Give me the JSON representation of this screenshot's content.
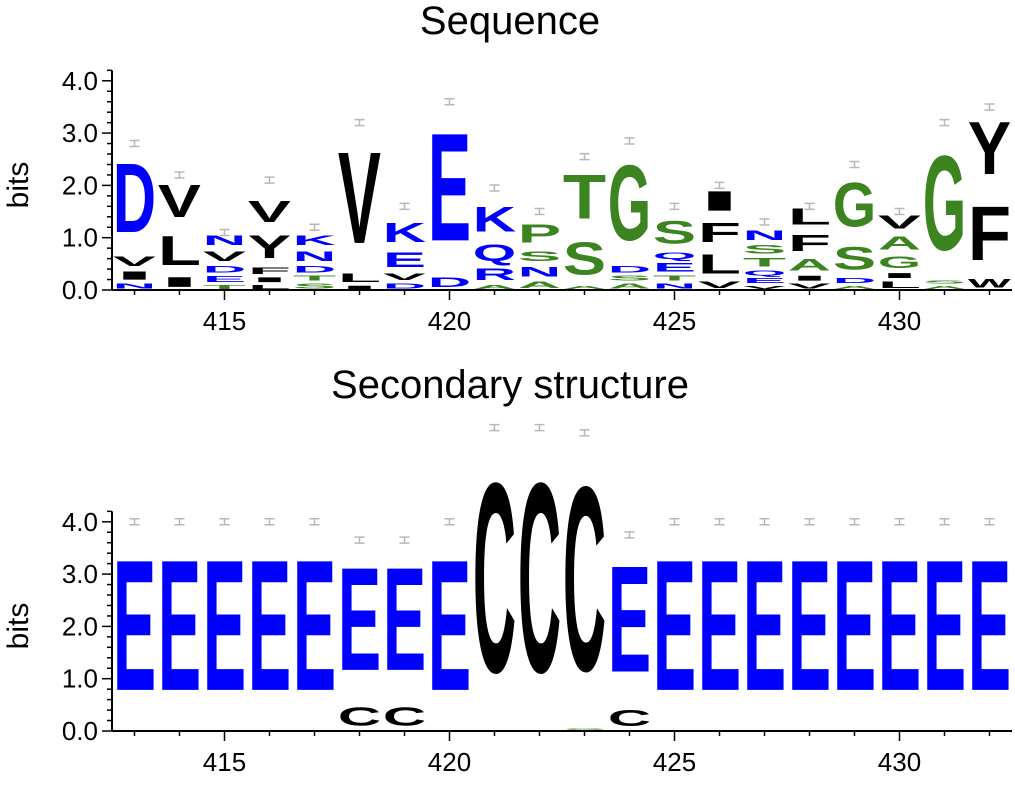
{
  "colors": {
    "polar": "#0000ff",
    "hydrophobic": "#000000",
    "neutral": "#3c8420",
    "errorbar": "#b8b8b8",
    "axis": "#000000",
    "background": "#ffffff"
  },
  "chart_data": [
    {
      "type": "sequence-logo",
      "title": "Sequence",
      "ylabel": "bits",
      "ylim": [
        0,
        4.2
      ],
      "yticks": [
        "0.0",
        "1.0",
        "2.0",
        "3.0",
        "4.0"
      ],
      "xlim": [
        412.5,
        432.5
      ],
      "xticks": [
        "415",
        "420",
        "425",
        "430"
      ],
      "positions": [
        {
          "x": 413,
          "err": 2.8,
          "stack": [
            {
              "l": "N",
              "h": 0.15,
              "c": "polar"
            },
            {
              "l": "I",
              "h": 0.25,
              "c": "hydrophobic"
            },
            {
              "l": "V",
              "h": 0.3,
              "c": "hydrophobic"
            },
            {
              "l": "D",
              "h": 2.1,
              "c": "polar"
            }
          ]
        },
        {
          "x": 414,
          "err": 2.2,
          "stack": [
            {
              "l": "I",
              "h": 0.3,
              "c": "hydrophobic"
            },
            {
              "l": "L",
              "h": 0.9,
              "c": "hydrophobic"
            },
            {
              "l": "V",
              "h": 1.0,
              "c": "hydrophobic"
            }
          ]
        },
        {
          "x": 415,
          "err": 1.1,
          "stack": [
            {
              "l": "T",
              "h": 0.12,
              "c": "neutral"
            },
            {
              "l": "E",
              "h": 0.18,
              "c": "polar"
            },
            {
              "l": "D",
              "h": 0.2,
              "c": "polar"
            },
            {
              "l": "V",
              "h": 0.3,
              "c": "hydrophobic"
            },
            {
              "l": "N",
              "h": 0.3,
              "c": "polar"
            }
          ]
        },
        {
          "x": 416,
          "err": 2.1,
          "stack": [
            {
              "l": "L",
              "h": 0.12,
              "c": "hydrophobic"
            },
            {
              "l": "I",
              "h": 0.15,
              "c": "hydrophobic"
            },
            {
              "l": "F",
              "h": 0.2,
              "c": "hydrophobic"
            },
            {
              "l": "Y",
              "h": 0.7,
              "c": "hydrophobic"
            },
            {
              "l": "V",
              "h": 0.65,
              "c": "hydrophobic"
            }
          ]
        },
        {
          "x": 417,
          "err": 1.2,
          "stack": [
            {
              "l": "S",
              "h": 0.15,
              "c": "neutral"
            },
            {
              "l": "T",
              "h": 0.15,
              "c": "neutral"
            },
            {
              "l": "D",
              "h": 0.2,
              "c": "polar"
            },
            {
              "l": "N",
              "h": 0.3,
              "c": "polar"
            },
            {
              "l": "K",
              "h": 0.3,
              "c": "polar"
            }
          ]
        },
        {
          "x": 418,
          "err": 3.2,
          "stack": [
            {
              "l": "I",
              "h": 0.1,
              "c": "hydrophobic"
            },
            {
              "l": "L",
              "h": 0.25,
              "c": "hydrophobic"
            },
            {
              "l": "V",
              "h": 2.8,
              "c": "hydrophobic"
            }
          ]
        },
        {
          "x": 419,
          "err": 1.6,
          "stack": [
            {
              "l": "D",
              "h": 0.15,
              "c": "polar"
            },
            {
              "l": "V",
              "h": 0.2,
              "c": "hydrophobic"
            },
            {
              "l": "E",
              "h": 0.45,
              "c": "polar"
            },
            {
              "l": "K",
              "h": 0.6,
              "c": "polar"
            }
          ]
        },
        {
          "x": 420,
          "err": 3.6,
          "stack": [
            {
              "l": "D",
              "h": 0.3,
              "c": "polar"
            },
            {
              "l": "E",
              "h": 3.3,
              "c": "polar"
            }
          ]
        },
        {
          "x": 421,
          "err": 1.95,
          "stack": [
            {
              "l": "A",
              "h": 0.12,
              "c": "neutral"
            },
            {
              "l": "R",
              "h": 0.35,
              "c": "polar"
            },
            {
              "l": "Q",
              "h": 0.5,
              "c": "polar"
            },
            {
              "l": "K",
              "h": 0.75,
              "c": "polar"
            }
          ]
        },
        {
          "x": 422,
          "err": 1.5,
          "stack": [
            {
              "l": "A",
              "h": 0.2,
              "c": "neutral"
            },
            {
              "l": "N",
              "h": 0.3,
              "c": "polar"
            },
            {
              "l": "S",
              "h": 0.3,
              "c": "neutral"
            },
            {
              "l": "P",
              "h": 0.55,
              "c": "neutral"
            }
          ]
        },
        {
          "x": 423,
          "err": 2.55,
          "stack": [
            {
              "l": "A",
              "h": 0.1,
              "c": "neutral"
            },
            {
              "l": "S",
              "h": 1.0,
              "c": "neutral"
            },
            {
              "l": "T",
              "h": 1.35,
              "c": "neutral"
            }
          ]
        },
        {
          "x": 424,
          "err": 2.85,
          "stack": [
            {
              "l": "A",
              "h": 0.15,
              "c": "neutral"
            },
            {
              "l": "S",
              "h": 0.15,
              "c": "neutral"
            },
            {
              "l": "D",
              "h": 0.2,
              "c": "polar"
            },
            {
              "l": "G",
              "h": 2.3,
              "c": "neutral"
            }
          ]
        },
        {
          "x": 425,
          "err": 1.6,
          "stack": [
            {
              "l": "N",
              "h": 0.15,
              "c": "polar"
            },
            {
              "l": "T",
              "h": 0.15,
              "c": "neutral"
            },
            {
              "l": "E",
              "h": 0.25,
              "c": "polar"
            },
            {
              "l": "Q",
              "h": 0.2,
              "c": "polar"
            },
            {
              "l": "S",
              "h": 0.7,
              "c": "neutral"
            }
          ]
        },
        {
          "x": 426,
          "err": 2.0,
          "stack": [
            {
              "l": "V",
              "h": 0.2,
              "c": "hydrophobic"
            },
            {
              "l": "L",
              "h": 0.6,
              "c": "hydrophobic"
            },
            {
              "l": "F",
              "h": 0.6,
              "c": "hydrophobic"
            },
            {
              "l": "I",
              "h": 0.6,
              "c": "hydrophobic"
            }
          ]
        },
        {
          "x": 427,
          "err": 1.3,
          "stack": [
            {
              "l": "V",
              "h": 0.1,
              "c": "hydrophobic"
            },
            {
              "l": "E",
              "h": 0.15,
              "c": "polar"
            },
            {
              "l": "Q",
              "h": 0.15,
              "c": "polar"
            },
            {
              "l": "T",
              "h": 0.25,
              "c": "neutral"
            },
            {
              "l": "S",
              "h": 0.25,
              "c": "neutral"
            },
            {
              "l": "N",
              "h": 0.3,
              "c": "polar"
            }
          ]
        },
        {
          "x": 428,
          "err": 1.6,
          "stack": [
            {
              "l": "V",
              "h": 0.15,
              "c": "hydrophobic"
            },
            {
              "l": "I",
              "h": 0.15,
              "c": "hydrophobic"
            },
            {
              "l": "A",
              "h": 0.35,
              "c": "neutral"
            },
            {
              "l": "F",
              "h": 0.5,
              "c": "hydrophobic"
            },
            {
              "l": "L",
              "h": 0.5,
              "c": "hydrophobic"
            }
          ]
        },
        {
          "x": 429,
          "err": 2.4,
          "stack": [
            {
              "l": "A",
              "h": 0.1,
              "c": "neutral"
            },
            {
              "l": "D",
              "h": 0.15,
              "c": "polar"
            },
            {
              "l": "S",
              "h": 0.7,
              "c": "neutral"
            },
            {
              "l": "G",
              "h": 1.35,
              "c": "neutral"
            }
          ]
        },
        {
          "x": 430,
          "err": 1.5,
          "stack": [
            {
              "l": "L",
              "h": 0.2,
              "c": "hydrophobic"
            },
            {
              "l": "I",
              "h": 0.15,
              "c": "hydrophobic"
            },
            {
              "l": "G",
              "h": 0.35,
              "c": "neutral"
            },
            {
              "l": "A",
              "h": 0.4,
              "c": "neutral"
            },
            {
              "l": "V",
              "h": 0.4,
              "c": "hydrophobic"
            }
          ]
        },
        {
          "x": 431,
          "err": 3.2,
          "stack": [
            {
              "l": "A",
              "h": 0.1,
              "c": "neutral"
            },
            {
              "l": "S",
              "h": 0.1,
              "c": "neutral"
            },
            {
              "l": "G",
              "h": 2.9,
              "c": "neutral"
            }
          ]
        },
        {
          "x": 432,
          "err": 3.5,
          "stack": [
            {
              "l": "W",
              "h": 0.25,
              "c": "hydrophobic"
            },
            {
              "l": "F",
              "h": 1.65,
              "c": "hydrophobic"
            },
            {
              "l": "Y",
              "h": 1.6,
              "c": "hydrophobic"
            }
          ]
        }
      ]
    },
    {
      "type": "sequence-logo",
      "title": "Secondary structure",
      "ylabel": "bits",
      "ylim": [
        0,
        4.2
      ],
      "yticks": [
        "0.0",
        "1.0",
        "2.0",
        "3.0",
        "4.0"
      ],
      "xlim": [
        412.5,
        432.5
      ],
      "xticks": [
        "415",
        "420",
        "425",
        "430"
      ],
      "positions": [
        {
          "x": 413,
          "err": 4.0,
          "stack": [
            {
              "l": "E",
              "h": 4.0,
              "c": "polar"
            }
          ]
        },
        {
          "x": 414,
          "err": 4.0,
          "stack": [
            {
              "l": "E",
              "h": 4.0,
              "c": "polar"
            }
          ]
        },
        {
          "x": 415,
          "err": 4.0,
          "stack": [
            {
              "l": "E",
              "h": 4.0,
              "c": "polar"
            }
          ]
        },
        {
          "x": 416,
          "err": 4.0,
          "stack": [
            {
              "l": "E",
              "h": 4.0,
              "c": "polar"
            }
          ]
        },
        {
          "x": 417,
          "err": 4.0,
          "stack": [
            {
              "l": "E",
              "h": 4.0,
              "c": "polar"
            }
          ]
        },
        {
          "x": 418,
          "err": 3.65,
          "stack": [
            {
              "l": "C",
              "h": 0.55,
              "c": "hydrophobic"
            },
            {
              "l": "E",
              "h": 3.15,
              "c": "polar"
            }
          ]
        },
        {
          "x": 419,
          "err": 3.65,
          "stack": [
            {
              "l": "C",
              "h": 0.55,
              "c": "hydrophobic"
            },
            {
              "l": "E",
              "h": 3.15,
              "c": "polar"
            }
          ]
        },
        {
          "x": 420,
          "err": 4.0,
          "stack": [
            {
              "l": "E",
              "h": 4.0,
              "c": "polar"
            }
          ]
        },
        {
          "x": 421,
          "err": 5.8,
          "stack": [
            {
              "l": "C",
              "h": 5.8,
              "c": "hydrophobic"
            }
          ]
        },
        {
          "x": 422,
          "err": 5.8,
          "stack": [
            {
              "l": "C",
              "h": 5.8,
              "c": "hydrophobic"
            }
          ]
        },
        {
          "x": 423,
          "err": 5.7,
          "stack": [
            {
              "l": "S",
              "h": 0.06,
              "c": "neutral"
            },
            {
              "l": "C",
              "h": 5.64,
              "c": "hydrophobic"
            }
          ]
        },
        {
          "x": 424,
          "err": 3.75,
          "stack": [
            {
              "l": "C",
              "h": 0.5,
              "c": "hydrophobic"
            },
            {
              "l": "E",
              "h": 3.25,
              "c": "polar"
            }
          ]
        },
        {
          "x": 425,
          "err": 4.0,
          "stack": [
            {
              "l": "E",
              "h": 4.0,
              "c": "polar"
            }
          ]
        },
        {
          "x": 426,
          "err": 4.0,
          "stack": [
            {
              "l": "E",
              "h": 4.0,
              "c": "polar"
            }
          ]
        },
        {
          "x": 427,
          "err": 4.0,
          "stack": [
            {
              "l": "E",
              "h": 4.0,
              "c": "polar"
            }
          ]
        },
        {
          "x": 428,
          "err": 4.0,
          "stack": [
            {
              "l": "E",
              "h": 4.0,
              "c": "polar"
            }
          ]
        },
        {
          "x": 429,
          "err": 4.0,
          "stack": [
            {
              "l": "E",
              "h": 4.0,
              "c": "polar"
            }
          ]
        },
        {
          "x": 430,
          "err": 4.0,
          "stack": [
            {
              "l": "E",
              "h": 4.0,
              "c": "polar"
            }
          ]
        },
        {
          "x": 431,
          "err": 4.0,
          "stack": [
            {
              "l": "E",
              "h": 4.0,
              "c": "polar"
            }
          ]
        },
        {
          "x": 432,
          "err": 4.0,
          "stack": [
            {
              "l": "E",
              "h": 4.0,
              "c": "polar"
            }
          ]
        }
      ]
    }
  ]
}
